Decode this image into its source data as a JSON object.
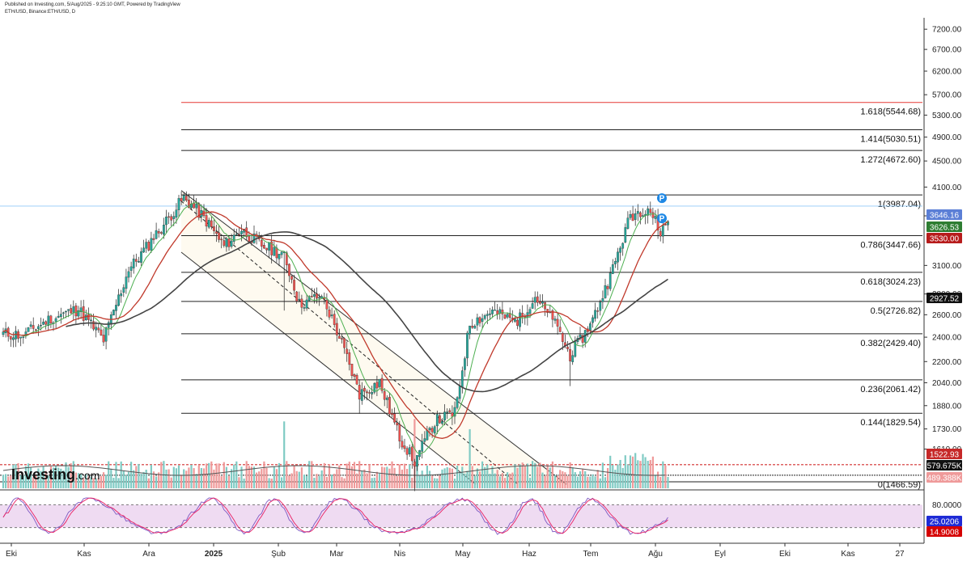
{
  "header": {
    "line1": "Published on Investing.com, 5/Aug/2025 - 9:25:10 GMT, Powered by TradingView",
    "line2": "ETH/USD, Binance:ETH/USD, D"
  },
  "logo": {
    "text": "Investing",
    "suffix": ".com"
  },
  "colors": {
    "up": "#26a69a",
    "down": "#ef5350",
    "ma_fast": "#4caf50",
    "ma_mid": "#c0392b",
    "ma_slow": "#444444",
    "fib_top": "#e53935",
    "stoch_k": "#7e57c2",
    "stoch_d": "#e91e63",
    "stoch_band": "#e1bee7",
    "vol_up": "#80cbc4",
    "vol_down": "#ef9a9a"
  },
  "chart_data": [
    {
      "type": "candlestick",
      "title": "",
      "y_scale": "log",
      "ylim": [
        1400,
        7500
      ],
      "x_ticks": [
        "Eki",
        "Kas",
        "Ara",
        "2025",
        "Şub",
        "Mar",
        "Nis",
        "May",
        "Haz",
        "Tem",
        "Ağu",
        "Eyl",
        "Eki",
        "Kas",
        "27"
      ],
      "y_ticks": [
        "7200.00",
        "6700.00",
        "6200.00",
        "5700.00",
        "5300.00",
        "4900.00",
        "4500.00",
        "4100.00",
        "3700.00",
        "3100.00",
        "2800.00",
        "2600.00",
        "2400.00",
        "2200.00",
        "2040.00",
        "1880.00",
        "1730.00",
        "1610.00"
      ],
      "fib_levels": [
        {
          "ratio": "0",
          "price": "1466.59",
          "value": 1466.59
        },
        {
          "ratio": "0.144",
          "price": "1829.54",
          "value": 1829.54
        },
        {
          "ratio": "0.236",
          "price": "2061.42",
          "value": 2061.42
        },
        {
          "ratio": "0.382",
          "price": "2429.40",
          "value": 2429.4
        },
        {
          "ratio": "0.5",
          "price": "2726.82",
          "value": 2726.82
        },
        {
          "ratio": "0.618",
          "price": "3024.23",
          "value": 3024.23
        },
        {
          "ratio": "0.786",
          "price": "3447.66",
          "value": 3447.66
        },
        {
          "ratio": "1",
          "price": "3987.04",
          "value": 3987.04
        },
        {
          "ratio": "1.272",
          "price": "4672.60",
          "value": 4672.6
        },
        {
          "ratio": "1.414",
          "price": "5030.51",
          "value": 5030.51
        },
        {
          "ratio": "1.618",
          "price": "5544.68",
          "value": 5544.68
        }
      ],
      "price_tags": [
        {
          "label": "3646.16",
          "value": 3646.16,
          "color": "#5b7fd6"
        },
        {
          "label": "3626.53",
          "value": 3626.53,
          "color": "#2e7d32"
        },
        {
          "label": "3530.00",
          "value": 3530.0,
          "color": "#b71c1c"
        },
        {
          "label": "2927.52",
          "value": 2927.52,
          "color": "#111111"
        },
        {
          "label": "1522.93",
          "value": 1522.93,
          "color": "#c62828"
        }
      ],
      "anchors": [
        {
          "date_index": 0,
          "price": 2430
        },
        {
          "date_index": 8,
          "price": 2420
        },
        {
          "date_index": 20,
          "price": 2580
        },
        {
          "date_index": 30,
          "price": 2650
        },
        {
          "date_index": 40,
          "price": 2380
        },
        {
          "date_index": 50,
          "price": 3050
        },
        {
          "date_index": 60,
          "price": 3420
        },
        {
          "date_index": 72,
          "price": 3950
        },
        {
          "date_index": 80,
          "price": 3680
        },
        {
          "date_index": 88,
          "price": 3320
        },
        {
          "date_index": 95,
          "price": 3520
        },
        {
          "date_index": 103,
          "price": 3330
        },
        {
          "date_index": 112,
          "price": 3220
        },
        {
          "date_index": 118,
          "price": 2700
        },
        {
          "date_index": 127,
          "price": 2790
        },
        {
          "date_index": 135,
          "price": 2350
        },
        {
          "date_index": 142,
          "price": 1960
        },
        {
          "date_index": 150,
          "price": 2040
        },
        {
          "date_index": 158,
          "price": 1680
        },
        {
          "date_index": 164,
          "price": 1540
        },
        {
          "date_index": 172,
          "price": 1780
        },
        {
          "date_index": 180,
          "price": 1830
        },
        {
          "date_index": 186,
          "price": 2520
        },
        {
          "date_index": 195,
          "price": 2630
        },
        {
          "date_index": 205,
          "price": 2530
        },
        {
          "date_index": 212,
          "price": 2780
        },
        {
          "date_index": 220,
          "price": 2510
        },
        {
          "date_index": 226,
          "price": 2250
        },
        {
          "date_index": 234,
          "price": 2500
        },
        {
          "date_index": 242,
          "price": 2980
        },
        {
          "date_index": 250,
          "price": 3700
        },
        {
          "date_index": 257,
          "price": 3820
        },
        {
          "date_index": 262,
          "price": 3500
        },
        {
          "date_index": 265,
          "price": 3626
        }
      ],
      "current_price": 3626.53
    },
    {
      "type": "bar",
      "name": "Volume",
      "tags": [
        {
          "label": "579.675K",
          "color": "#111111"
        },
        {
          "label": "489.388K",
          "color": "#ef9a9a"
        }
      ]
    },
    {
      "type": "line",
      "name": "Stochastic",
      "ylim": [
        0,
        100
      ],
      "y_ticks": [
        "80.0000",
        "40.0000"
      ],
      "band": [
        20,
        80
      ],
      "tags": [
        {
          "label": "25.0206",
          "value": 25.02,
          "color": "#1e2bd6"
        },
        {
          "label": "14.9008",
          "value": 14.9,
          "color": "#d50000"
        }
      ]
    }
  ]
}
